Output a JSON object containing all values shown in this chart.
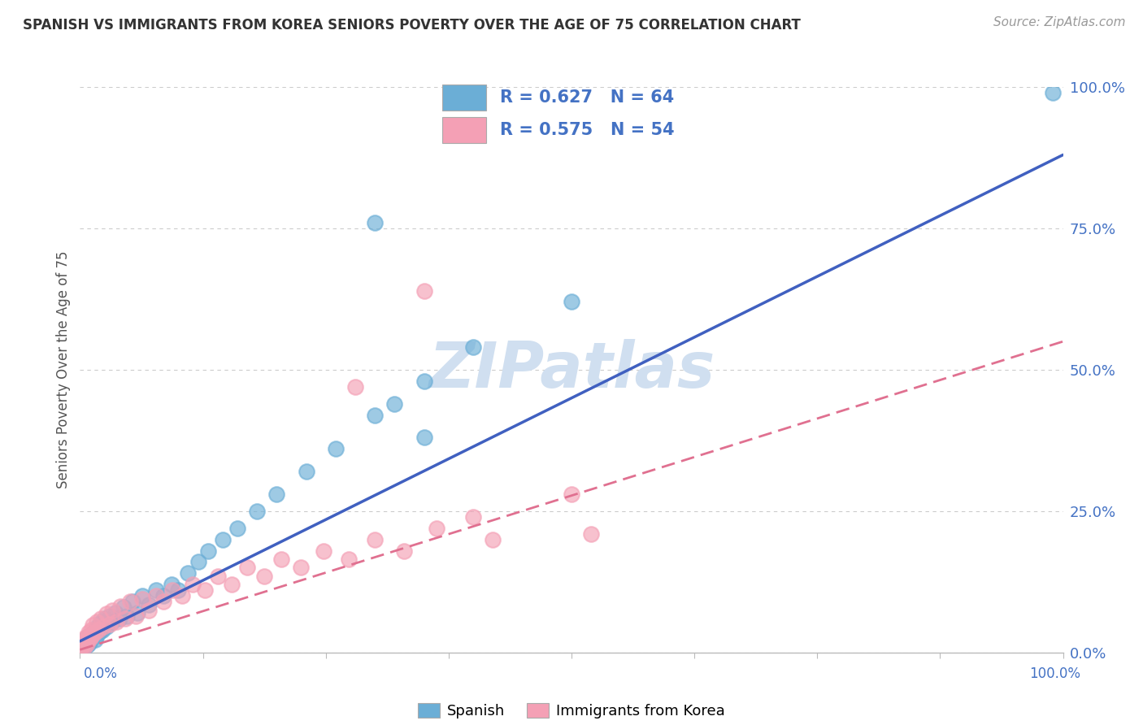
{
  "title": "SPANISH VS IMMIGRANTS FROM KOREA SENIORS POVERTY OVER THE AGE OF 75 CORRELATION CHART",
  "source": "Source: ZipAtlas.com",
  "ylabel": "Seniors Poverty Over the Age of 75",
  "r_spanish": 0.627,
  "n_spanish": 64,
  "r_korea": 0.575,
  "n_korea": 54,
  "legend_labels": [
    "Spanish",
    "Immigrants from Korea"
  ],
  "color_spanish": "#6baed6",
  "color_korea": "#f4a0b5",
  "background_color": "#ffffff",
  "watermark_color": "#d0dff0",
  "line_color_spanish": "#4060c0",
  "line_color_korea": "#e07090",
  "spanish_x": [
    0.001,
    0.002,
    0.003,
    0.003,
    0.004,
    0.004,
    0.005,
    0.005,
    0.006,
    0.006,
    0.007,
    0.007,
    0.008,
    0.008,
    0.009,
    0.009,
    0.01,
    0.01,
    0.011,
    0.012,
    0.013,
    0.014,
    0.015,
    0.016,
    0.017,
    0.018,
    0.019,
    0.02,
    0.021,
    0.022,
    0.023,
    0.025,
    0.027,
    0.03,
    0.033,
    0.036,
    0.04,
    0.044,
    0.048,
    0.053,
    0.058,
    0.063,
    0.07,
    0.077,
    0.085,
    0.093,
    0.1,
    0.11,
    0.12,
    0.13,
    0.145,
    0.16,
    0.18,
    0.2,
    0.23,
    0.26,
    0.3,
    0.35,
    0.4,
    0.5,
    0.3,
    0.35,
    0.99,
    0.32
  ],
  "spanish_y": [
    0.005,
    0.008,
    0.01,
    0.015,
    0.012,
    0.018,
    0.01,
    0.02,
    0.015,
    0.025,
    0.012,
    0.022,
    0.018,
    0.028,
    0.015,
    0.025,
    0.02,
    0.03,
    0.025,
    0.032,
    0.028,
    0.035,
    0.022,
    0.04,
    0.03,
    0.045,
    0.035,
    0.05,
    0.038,
    0.055,
    0.04,
    0.06,
    0.045,
    0.065,
    0.055,
    0.07,
    0.06,
    0.08,
    0.065,
    0.09,
    0.07,
    0.1,
    0.085,
    0.11,
    0.1,
    0.12,
    0.11,
    0.14,
    0.16,
    0.18,
    0.2,
    0.22,
    0.25,
    0.28,
    0.32,
    0.36,
    0.42,
    0.48,
    0.54,
    0.62,
    0.76,
    0.38,
    0.99,
    0.44
  ],
  "korea_x": [
    0.001,
    0.002,
    0.003,
    0.003,
    0.004,
    0.005,
    0.005,
    0.006,
    0.007,
    0.008,
    0.008,
    0.009,
    0.01,
    0.011,
    0.012,
    0.013,
    0.015,
    0.017,
    0.019,
    0.021,
    0.024,
    0.027,
    0.03,
    0.033,
    0.037,
    0.041,
    0.046,
    0.051,
    0.057,
    0.063,
    0.07,
    0.077,
    0.085,
    0.094,
    0.104,
    0.115,
    0.127,
    0.14,
    0.154,
    0.17,
    0.187,
    0.205,
    0.225,
    0.248,
    0.273,
    0.3,
    0.33,
    0.363,
    0.4,
    0.5,
    0.35,
    0.42,
    0.28,
    0.52
  ],
  "korea_y": [
    0.008,
    0.012,
    0.015,
    0.02,
    0.018,
    0.01,
    0.025,
    0.02,
    0.015,
    0.028,
    0.022,
    0.035,
    0.025,
    0.04,
    0.03,
    0.048,
    0.035,
    0.055,
    0.04,
    0.06,
    0.045,
    0.068,
    0.05,
    0.075,
    0.055,
    0.082,
    0.06,
    0.09,
    0.065,
    0.095,
    0.075,
    0.1,
    0.09,
    0.11,
    0.1,
    0.12,
    0.11,
    0.135,
    0.12,
    0.15,
    0.135,
    0.165,
    0.15,
    0.18,
    0.165,
    0.2,
    0.18,
    0.22,
    0.24,
    0.28,
    0.64,
    0.2,
    0.47,
    0.21
  ],
  "line_sp_x0": 0.0,
  "line_sp_y0": 0.02,
  "line_sp_x1": 1.0,
  "line_sp_y1": 0.88,
  "line_ko_x0": 0.0,
  "line_ko_y0": 0.005,
  "line_ko_x1": 1.0,
  "line_ko_y1": 0.55,
  "ytick_labels": [
    "0.0%",
    "25.0%",
    "50.0%",
    "75.0%",
    "100.0%"
  ],
  "ytick_values": [
    0.0,
    0.25,
    0.5,
    0.75,
    1.0
  ],
  "xtick_values": [
    0.0,
    0.125,
    0.25,
    0.375,
    0.5,
    0.625,
    0.75,
    0.875,
    1.0
  ]
}
